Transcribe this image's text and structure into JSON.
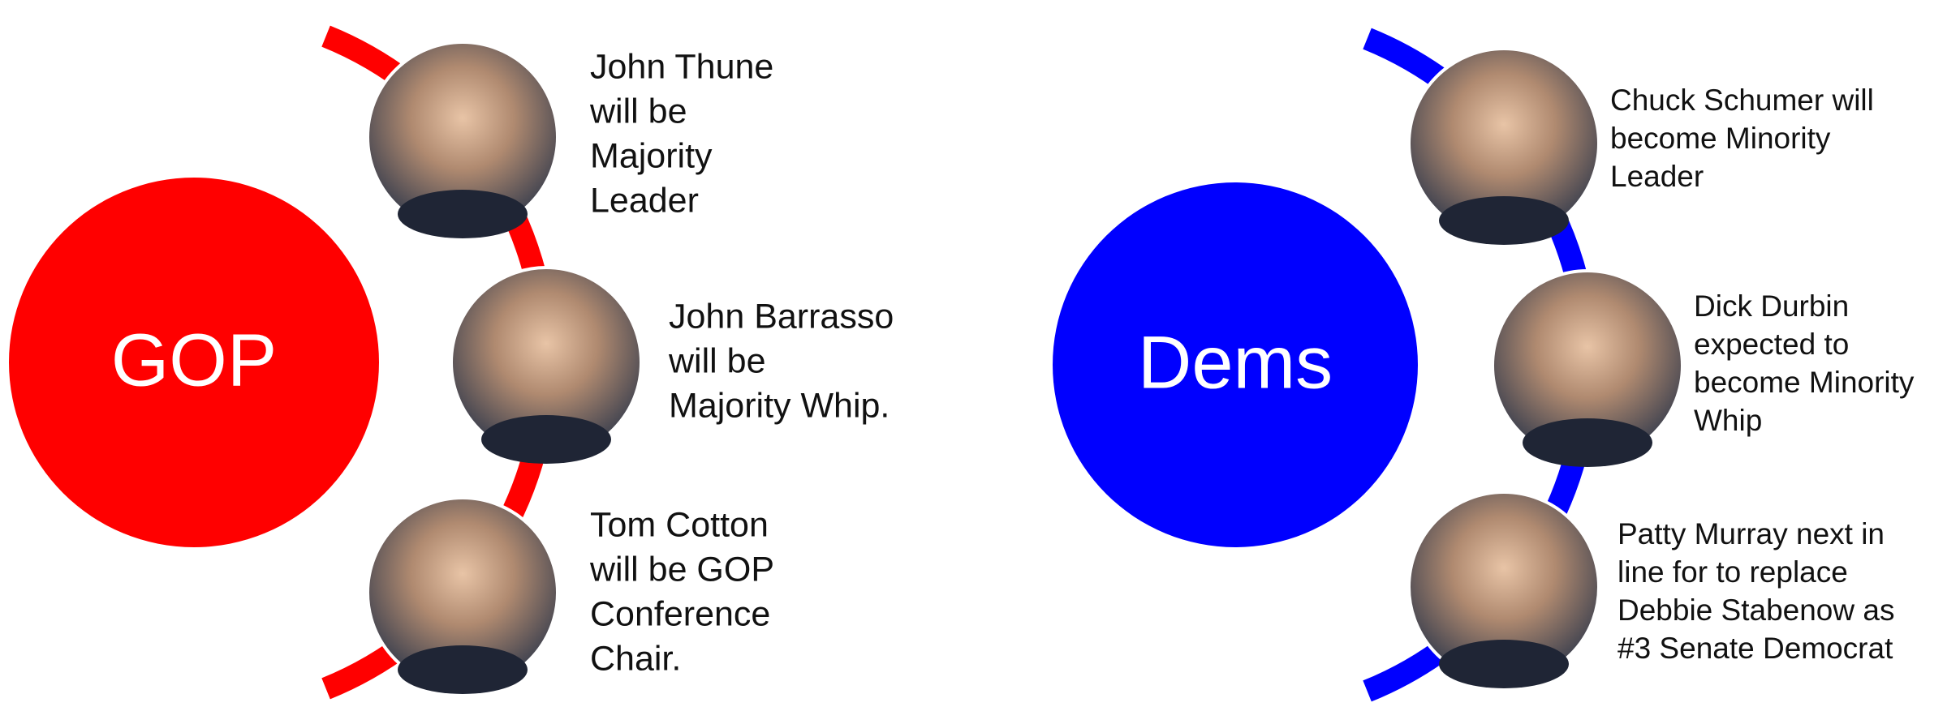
{
  "groups": [
    {
      "label": "GOP",
      "color": "#ff0000",
      "items": [
        [
          "John Thune",
          "will be",
          "Majority",
          "Leader"
        ],
        [
          "John Barrasso",
          "will be",
          "Majority Whip."
        ],
        [
          "Tom Cotton",
          "will be GOP",
          "Conference",
          "Chair."
        ]
      ]
    },
    {
      "label": "Dems",
      "color": "#0000ff",
      "items": [
        [
          "Chuck Schumer will",
          "become Minority",
          "Leader"
        ],
        [
          "Dick Durbin",
          "expected to",
          "become Minority",
          "Whip"
        ],
        [
          "Patty Murray next in",
          "line for to replace",
          "Debbie Stabenow as",
          "#3 Senate Democrat"
        ]
      ]
    }
  ]
}
